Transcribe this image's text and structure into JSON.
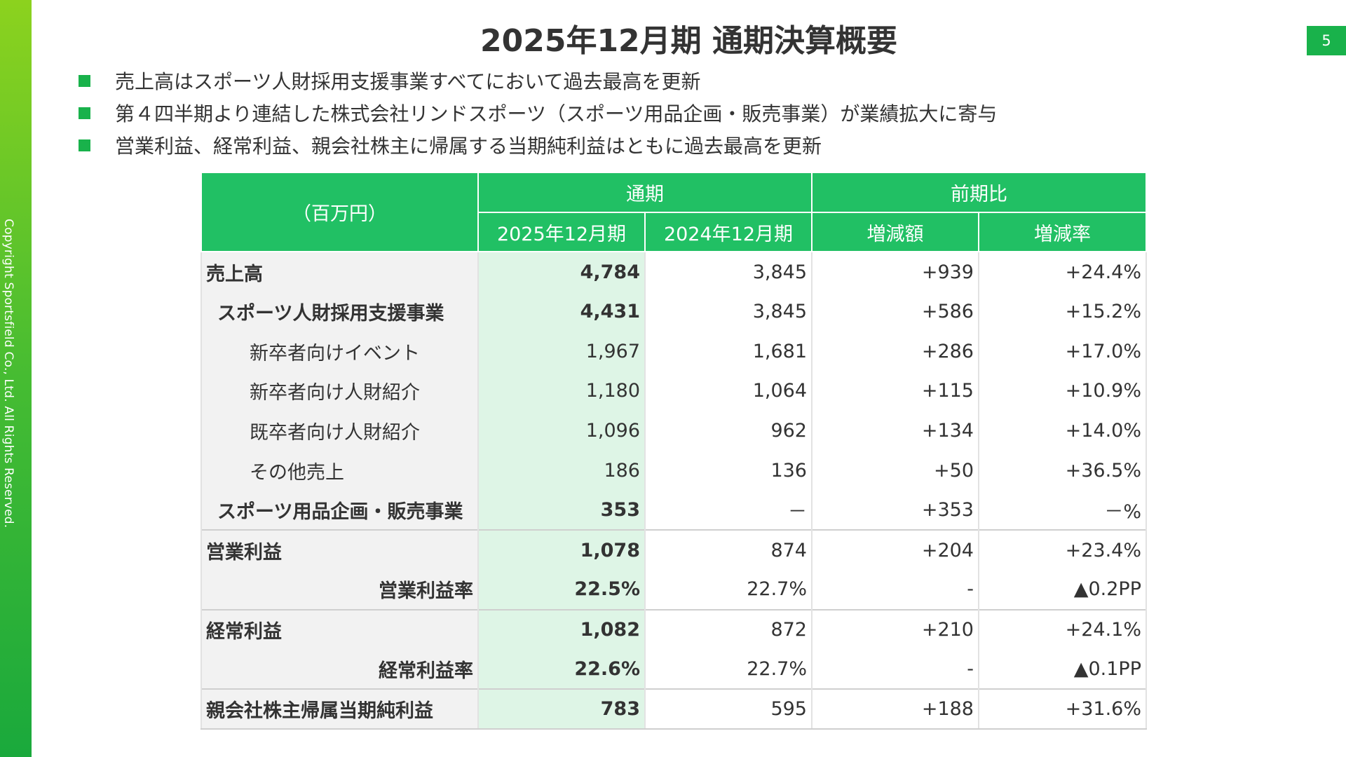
{
  "page_number": "5",
  "copyright": "Copyright Sportsfield Co., Ltd. All Rights Reserved.",
  "title": "2025年12月期 通期決算概要",
  "bullets": [
    "売上高はスポーツ人財採用支援事業すべてにおいて過去最高を更新",
    "第４四半期より連結した株式会社リンドスポーツ（スポーツ用品企画・販売事業）が業績拡大に寄与",
    "営業利益、経常利益、親会社株主に帰属する当期純利益はともに過去最高を更新"
  ],
  "table": {
    "unit_label": "（百万円）",
    "group_full_year": "通期",
    "group_yoy": "前期比",
    "col_current": "2025年12月期",
    "col_prior": "2024年12月期",
    "col_change": "増減額",
    "col_rate": "増減率",
    "rows": [
      {
        "label": "売上高",
        "cur": "4,784",
        "prev": "3,845",
        "chg": "+939",
        "rate": "+24.4%"
      },
      {
        "label": "スポーツ人財採用支援事業",
        "cur": "4,431",
        "prev": "3,845",
        "chg": "+586",
        "rate": "+15.2%"
      },
      {
        "label": "新卒者向けイベント",
        "cur": "1,967",
        "prev": "1,681",
        "chg": "+286",
        "rate": "+17.0%"
      },
      {
        "label": "新卒者向け人財紹介",
        "cur": "1,180",
        "prev": "1,064",
        "chg": "+115",
        "rate": "+10.9%"
      },
      {
        "label": "既卒者向け人財紹介",
        "cur": "1,096",
        "prev": "962",
        "chg": "+134",
        "rate": "+14.0%"
      },
      {
        "label": "その他売上",
        "cur": "186",
        "prev": "136",
        "chg": "+50",
        "rate": "+36.5%"
      },
      {
        "label": "スポーツ用品企画・販売事業",
        "cur": "353",
        "prev": "－",
        "chg": "+353",
        "rate": "－%"
      },
      {
        "label": "営業利益",
        "cur": "1,078",
        "prev": "874",
        "chg": "+204",
        "rate": "+23.4%"
      },
      {
        "label": "営業利益率",
        "cur": "22.5%",
        "prev": "22.7%",
        "chg": "-",
        "rate": "▲0.2PP"
      },
      {
        "label": "経常利益",
        "cur": "1,082",
        "prev": "872",
        "chg": "+210",
        "rate": "+24.1%"
      },
      {
        "label": "経常利益率",
        "cur": "22.6%",
        "prev": "22.7%",
        "chg": "-",
        "rate": "▲0.1PP"
      },
      {
        "label": "親会社株主帰属当期純利益",
        "cur": "783",
        "prev": "595",
        "chg": "+188",
        "rate": "+31.6%"
      }
    ]
  },
  "colors": {
    "accent": "#21c064",
    "highlight_column": "#def5e6",
    "label_column": "#f2f2f2"
  }
}
